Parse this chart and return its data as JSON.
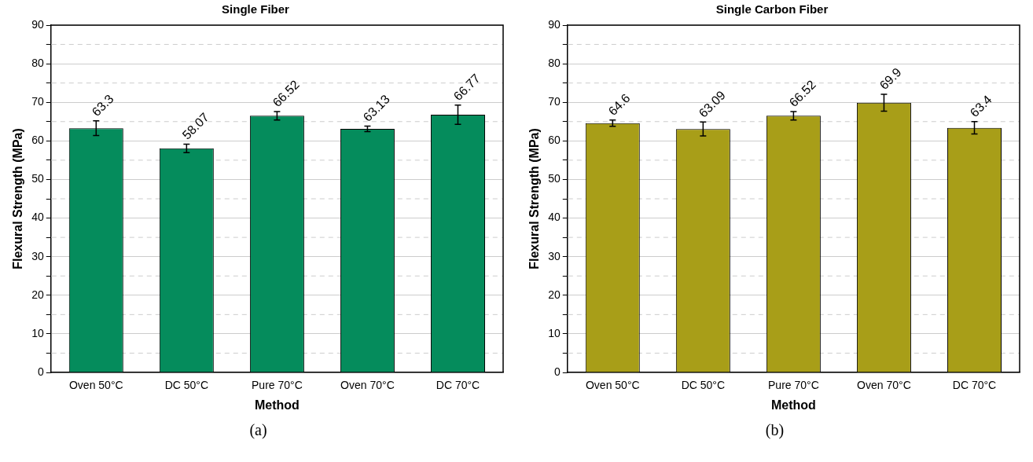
{
  "chart_data": [
    {
      "type": "bar",
      "title": "Single Fiber",
      "xlabel": "Method",
      "ylabel": "Flexural Strength (MPa)",
      "categories": [
        "Oven 50°C",
        "DC 50°C",
        "Pure 70°C",
        "Oven 70°C",
        "DC 70°C"
      ],
      "values": [
        63.3,
        58.07,
        66.52,
        63.13,
        66.77
      ],
      "errors": [
        1.9,
        1.1,
        1.1,
        0.7,
        2.5
      ],
      "color": "#058c5c",
      "data_labels": true,
      "ylim": [
        0,
        90
      ],
      "yticks": [
        0,
        {
          "value": 5,
          "label": null
        },
        10,
        {
          "value": 15,
          "label": null
        },
        20,
        {
          "value": 25,
          "label": null
        },
        30,
        {
          "value": 35,
          "label": null
        },
        40,
        {
          "value": 45,
          "label": null
        },
        50,
        {
          "value": 55,
          "label": null
        },
        60,
        {
          "value": 65,
          "label": null
        },
        70,
        {
          "value": 75,
          "label": null
        },
        80,
        {
          "value": 85,
          "label": null
        },
        90
      ],
      "grid": "y",
      "annotations": [
        "(a)"
      ]
    },
    {
      "type": "bar",
      "title": "Single Carbon Fiber",
      "xlabel": "Method",
      "ylabel": "Flexural Strength (MPa)",
      "categories": [
        "Oven 50°C",
        "DC 50°C",
        "Pure 70°C",
        "Oven 70°C",
        "DC 70°C"
      ],
      "values": [
        64.6,
        63.09,
        66.52,
        69.9,
        63.4
      ],
      "errors": [
        0.8,
        1.8,
        1.1,
        2.2,
        1.6
      ],
      "color": "#a89e18",
      "data_labels": true,
      "ylim": [
        0,
        90
      ],
      "yticks": [
        0,
        {
          "value": 5,
          "label": null
        },
        10,
        {
          "value": 15,
          "label": null
        },
        20,
        {
          "value": 25,
          "label": null
        },
        30,
        {
          "value": 35,
          "label": null
        },
        40,
        {
          "value": 45,
          "label": null
        },
        50,
        {
          "value": 55,
          "label": null
        },
        60,
        {
          "value": 65,
          "label": null
        },
        70,
        {
          "value": 75,
          "label": null
        },
        80,
        {
          "value": 85,
          "label": null
        },
        90
      ],
      "grid": "y",
      "annotations": [
        "(b)"
      ]
    }
  ]
}
